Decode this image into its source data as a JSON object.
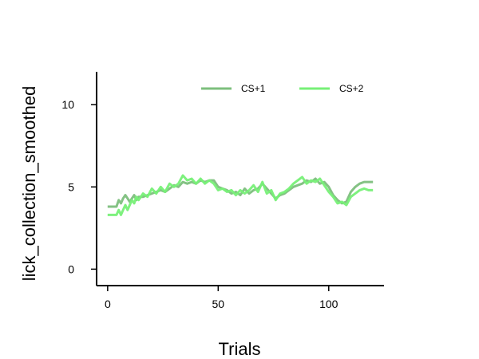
{
  "chart_data": {
    "type": "line",
    "title": "",
    "xlabel": "Trials",
    "ylabel": "lick_collection_smoothed",
    "xlim": [
      -5,
      125
    ],
    "ylim": [
      -1,
      12
    ],
    "xticks": [
      0,
      50,
      100
    ],
    "yticks": [
      0,
      5,
      10
    ],
    "grid": false,
    "legend_placement": "top-right",
    "series": [
      {
        "name": "CS+1",
        "color": "#7dbf7d",
        "points": [
          [
            0,
            3.8
          ],
          [
            2,
            3.8
          ],
          [
            4,
            3.8
          ],
          [
            5,
            4.2
          ],
          [
            6,
            4.0
          ],
          [
            7,
            4.3
          ],
          [
            8,
            4.5
          ],
          [
            9,
            4.3
          ],
          [
            10,
            4.1
          ],
          [
            11,
            4.3
          ],
          [
            12,
            4.5
          ],
          [
            13,
            4.2
          ],
          [
            14,
            4.4
          ],
          [
            16,
            4.4
          ],
          [
            18,
            4.5
          ],
          [
            20,
            4.6
          ],
          [
            22,
            4.7
          ],
          [
            24,
            4.8
          ],
          [
            26,
            4.7
          ],
          [
            28,
            4.9
          ],
          [
            30,
            5.1
          ],
          [
            32,
            5.0
          ],
          [
            34,
            5.3
          ],
          [
            36,
            5.2
          ],
          [
            38,
            5.3
          ],
          [
            40,
            5.2
          ],
          [
            42,
            5.4
          ],
          [
            44,
            5.3
          ],
          [
            46,
            5.4
          ],
          [
            48,
            5.4
          ],
          [
            50,
            5.0
          ],
          [
            52,
            4.9
          ],
          [
            54,
            4.8
          ],
          [
            56,
            4.6
          ],
          [
            58,
            4.7
          ],
          [
            60,
            4.5
          ],
          [
            62,
            4.9
          ],
          [
            64,
            4.6
          ],
          [
            66,
            4.8
          ],
          [
            68,
            4.9
          ],
          [
            70,
            5.2
          ],
          [
            72,
            4.9
          ],
          [
            74,
            4.6
          ],
          [
            76,
            4.3
          ],
          [
            78,
            4.5
          ],
          [
            80,
            4.6
          ],
          [
            82,
            4.8
          ],
          [
            84,
            5.0
          ],
          [
            86,
            5.1
          ],
          [
            88,
            5.2
          ],
          [
            90,
            5.4
          ],
          [
            92,
            5.3
          ],
          [
            94,
            5.5
          ],
          [
            96,
            5.2
          ],
          [
            98,
            5.3
          ],
          [
            100,
            5.0
          ],
          [
            102,
            4.5
          ],
          [
            104,
            4.2
          ],
          [
            106,
            4.0
          ],
          [
            108,
            4.1
          ],
          [
            110,
            4.7
          ],
          [
            112,
            5.0
          ],
          [
            114,
            5.2
          ],
          [
            116,
            5.3
          ],
          [
            118,
            5.3
          ],
          [
            120,
            5.3
          ]
        ]
      },
      {
        "name": "CS+2",
        "color": "#77f077",
        "points": [
          [
            0,
            3.3
          ],
          [
            2,
            3.3
          ],
          [
            4,
            3.3
          ],
          [
            5,
            3.6
          ],
          [
            6,
            3.3
          ],
          [
            7,
            3.6
          ],
          [
            8,
            3.9
          ],
          [
            9,
            3.6
          ],
          [
            10,
            3.9
          ],
          [
            11,
            4.2
          ],
          [
            12,
            4.0
          ],
          [
            13,
            4.4
          ],
          [
            14,
            4.2
          ],
          [
            16,
            4.6
          ],
          [
            18,
            4.4
          ],
          [
            20,
            4.9
          ],
          [
            22,
            4.6
          ],
          [
            24,
            5.0
          ],
          [
            26,
            4.7
          ],
          [
            28,
            5.2
          ],
          [
            30,
            5.0
          ],
          [
            32,
            5.2
          ],
          [
            34,
            5.7
          ],
          [
            36,
            5.4
          ],
          [
            38,
            5.5
          ],
          [
            40,
            5.2
          ],
          [
            42,
            5.5
          ],
          [
            44,
            5.2
          ],
          [
            46,
            5.4
          ],
          [
            48,
            5.2
          ],
          [
            50,
            4.8
          ],
          [
            52,
            4.9
          ],
          [
            54,
            4.7
          ],
          [
            56,
            4.8
          ],
          [
            58,
            4.5
          ],
          [
            60,
            4.8
          ],
          [
            62,
            4.6
          ],
          [
            64,
            4.8
          ],
          [
            66,
            5.1
          ],
          [
            68,
            4.7
          ],
          [
            70,
            5.3
          ],
          [
            72,
            4.6
          ],
          [
            74,
            4.8
          ],
          [
            76,
            4.2
          ],
          [
            78,
            4.6
          ],
          [
            80,
            4.7
          ],
          [
            82,
            4.9
          ],
          [
            84,
            5.2
          ],
          [
            86,
            5.4
          ],
          [
            88,
            5.6
          ],
          [
            90,
            5.2
          ],
          [
            92,
            5.4
          ],
          [
            94,
            5.3
          ],
          [
            96,
            5.5
          ],
          [
            98,
            5.1
          ],
          [
            100,
            4.7
          ],
          [
            102,
            4.4
          ],
          [
            104,
            4.0
          ],
          [
            106,
            4.1
          ],
          [
            108,
            3.9
          ],
          [
            110,
            4.4
          ],
          [
            112,
            4.6
          ],
          [
            114,
            4.8
          ],
          [
            116,
            4.9
          ],
          [
            118,
            4.8
          ],
          [
            120,
            4.8
          ]
        ]
      }
    ]
  }
}
